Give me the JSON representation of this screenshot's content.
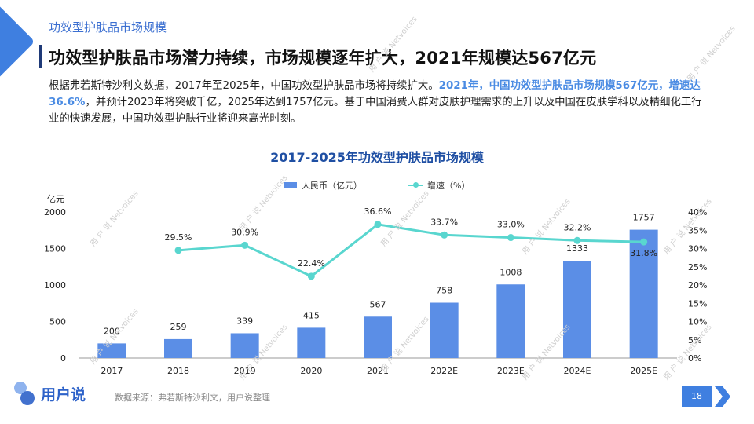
{
  "header": {
    "kicker": "功效型护肤品市场规模",
    "title": "功效型护肤品市场潜力持续，市场规模逐年扩大，2021年规模达567亿元"
  },
  "intro": {
    "part1": "根据弗若斯特沙利文数据，2017年至2025年，中国功效型护肤品市场将持续扩大。",
    "highlight": "2021年，中国功效型护肤品市场规模567亿元，增速达36.6%",
    "part2": "，并预计2023年将突破千亿，2025年达到1757亿元。基于中国消费人群对皮肤护理需求的上升以及中国在皮肤学科以及精细化工行业的快速发展，中国功效型护肤行业将迎来高光时刻。"
  },
  "chart_data": {
    "type": "bar",
    "title": "2017-2025年功效型护肤品市场规模",
    "categories": [
      "2017",
      "2018",
      "2019",
      "2020",
      "2021",
      "2022E",
      "2023E",
      "2024E",
      "2025E"
    ],
    "series": [
      {
        "name": "人民币（亿元）",
        "type": "bar",
        "axis": "left",
        "values": [
          200,
          259,
          339,
          415,
          567,
          758,
          1008,
          1333,
          1757
        ],
        "labels": [
          "200",
          "259",
          "339",
          "415",
          "567",
          "758",
          "1008",
          "1333",
          "1757"
        ],
        "color": "#5b8ee6"
      },
      {
        "name": "增速（%）",
        "type": "line",
        "axis": "right",
        "values": [
          null,
          29.5,
          30.9,
          22.4,
          36.6,
          33.7,
          33.0,
          32.2,
          31.8
        ],
        "labels": [
          "",
          "29.5%",
          "30.9%",
          "22.4%",
          "36.6%",
          "33.7%",
          "33.0%",
          "32.2%",
          "31.8%"
        ],
        "color": "#59d6cf"
      }
    ],
    "y_left": {
      "label": "亿元",
      "range": [
        0,
        2000
      ],
      "ticks": [
        "0",
        "500",
        "1000",
        "1500",
        "2000"
      ]
    },
    "y_right": {
      "range": [
        0,
        40
      ],
      "ticks": [
        "0%",
        "5%",
        "10%",
        "15%",
        "20%",
        "25%",
        "30%",
        "35%",
        "40%"
      ]
    },
    "legend_position": "top",
    "grid": false
  },
  "footer": {
    "logo_text": "用户说",
    "source": "数据来源：弗若斯特沙利文，用户说整理",
    "page_number": "18"
  },
  "colors": {
    "accent": "#3f7fe0",
    "title_blue": "#1f4fa3",
    "bar": "#5b8ee6",
    "line": "#59d6cf"
  },
  "watermark": {
    "text_cn": "用 户 说",
    "text_en": "Netvoices"
  }
}
